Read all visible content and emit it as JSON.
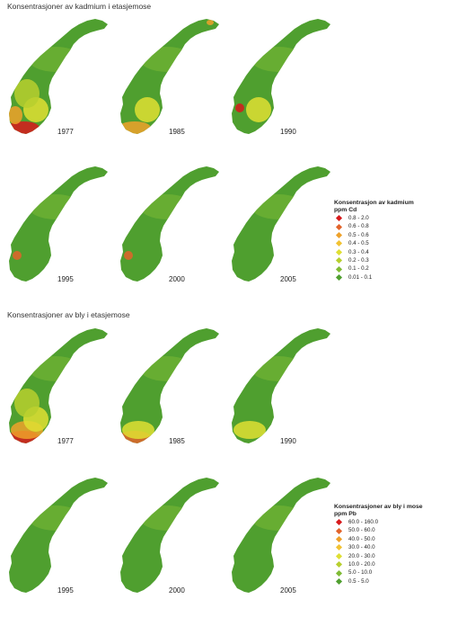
{
  "titles": {
    "cadmium": "Konsentrasjoner av kadmium i etasjemose",
    "lead": "Konsentrasjoner av bly i etasjemose"
  },
  "colors": {
    "base_green": "#4f9f2f",
    "light_green": "#7fbb35",
    "yellow_green": "#b7cf2e",
    "yellow": "#dfdf33",
    "orange": "#eea12a",
    "red_orange": "#e2632a",
    "red": "#d7191c"
  },
  "cadmium_maps": [
    {
      "year": "1977",
      "hotspots": [
        "south-coast:red",
        "southwest:orange",
        "east:yellow",
        "central:yellow-green"
      ]
    },
    {
      "year": "1985",
      "hotspots": [
        "north-east:orange",
        "south-coast:orange",
        "east:yellow"
      ]
    },
    {
      "year": "1990",
      "hotspots": [
        "southwest-inland:red",
        "east:yellow"
      ]
    },
    {
      "year": "1995",
      "hotspots": [
        "southwest-inland:red-orange"
      ]
    },
    {
      "year": "2000",
      "hotspots": [
        "southwest-inland:red-orange"
      ]
    },
    {
      "year": "2005",
      "hotspots": []
    }
  ],
  "lead_maps": [
    {
      "year": "1977",
      "hotspots": [
        "south-coast:red",
        "south:orange",
        "east:yellow",
        "central:yellow-green"
      ]
    },
    {
      "year": "1985",
      "hotspots": [
        "south-coast:red-orange",
        "south:yellow"
      ]
    },
    {
      "year": "1990",
      "hotspots": [
        "south:yellow"
      ]
    },
    {
      "year": "1995",
      "hotspots": []
    },
    {
      "year": "2000",
      "hotspots": []
    },
    {
      "year": "2005",
      "hotspots": []
    }
  ],
  "legend_cd": {
    "title_line1": "Konsentrasjon av kadmium",
    "title_line2": "ppm Cd",
    "items": [
      {
        "label": "0.8 - 2.0",
        "color": "#d7191c"
      },
      {
        "label": "0.6 - 0.8",
        "color": "#e2632a"
      },
      {
        "label": "0.5 - 0.6",
        "color": "#eea12a"
      },
      {
        "label": "0.4 - 0.5",
        "color": "#f2c232"
      },
      {
        "label": "0.3 - 0.4",
        "color": "#dfdf33"
      },
      {
        "label": "0.2 - 0.3",
        "color": "#b7cf2e"
      },
      {
        "label": "0.1 - 0.2",
        "color": "#7fbb35"
      },
      {
        "label": "0.01 - 0.1",
        "color": "#4f9f2f"
      }
    ]
  },
  "legend_pb": {
    "title_line1": "Konsentrasjoner av bly i mose",
    "title_line2": "ppm Pb",
    "items": [
      {
        "label": "60.0 - 160.0",
        "color": "#d7191c"
      },
      {
        "label": "50.0 - 60.0",
        "color": "#e2632a"
      },
      {
        "label": "40.0 - 50.0",
        "color": "#eea12a"
      },
      {
        "label": "30.0 - 40.0",
        "color": "#f2c232"
      },
      {
        "label": "20.0 - 30.0",
        "color": "#dfdf33"
      },
      {
        "label": "10.0 - 20.0",
        "color": "#b7cf2e"
      },
      {
        "label": "5.0 - 10.0",
        "color": "#7fbb35"
      },
      {
        "label": "0.5 - 5.0",
        "color": "#4f9f2f"
      }
    ]
  }
}
